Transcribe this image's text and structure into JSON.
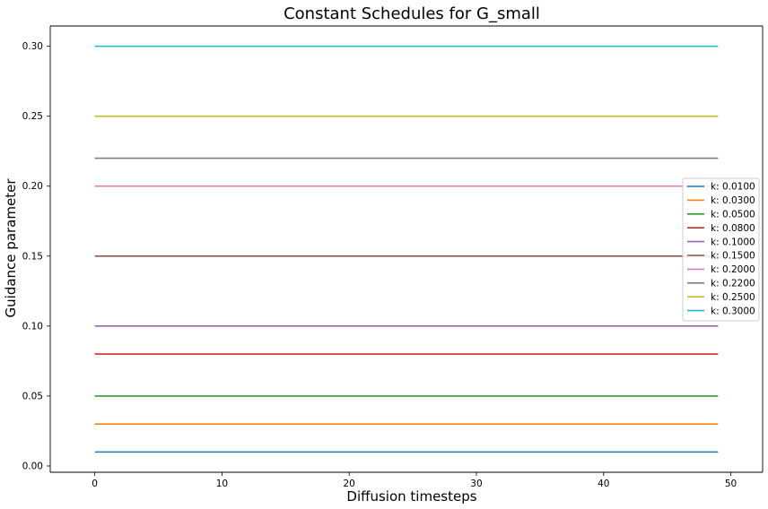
{
  "chart_data": {
    "type": "line",
    "title": "Constant Schedules for G_small",
    "xlabel": "Diffusion timesteps",
    "ylabel": "Guidance parameter",
    "xlim": [
      -3.5,
      52.5
    ],
    "ylim": [
      -0.0045,
      0.3145
    ],
    "xticks": [
      "0",
      "10",
      "20",
      "30",
      "40",
      "50"
    ],
    "yticks": [
      "0.00",
      "0.05",
      "0.10",
      "0.15",
      "0.20",
      "0.25",
      "0.30"
    ],
    "x_start": 0,
    "x_end": 49,
    "grid": false,
    "legend_position": "center-right",
    "series": [
      {
        "name": "k: 0.0100",
        "value": 0.01,
        "color": "#1f77b4"
      },
      {
        "name": "k: 0.0300",
        "value": 0.03,
        "color": "#ff7f0e"
      },
      {
        "name": "k: 0.0500",
        "value": 0.05,
        "color": "#2ca02c"
      },
      {
        "name": "k: 0.0800",
        "value": 0.08,
        "color": "#d62728"
      },
      {
        "name": "k: 0.1000",
        "value": 0.1,
        "color": "#9467bd"
      },
      {
        "name": "k: 0.1500",
        "value": 0.15,
        "color": "#8c564b"
      },
      {
        "name": "k: 0.2000",
        "value": 0.2,
        "color": "#e377c2"
      },
      {
        "name": "k: 0.2200",
        "value": 0.22,
        "color": "#7f7f7f"
      },
      {
        "name": "k: 0.2500",
        "value": 0.25,
        "color": "#bcbd22"
      },
      {
        "name": "k: 0.3000",
        "value": 0.3,
        "color": "#17becf"
      }
    ]
  }
}
